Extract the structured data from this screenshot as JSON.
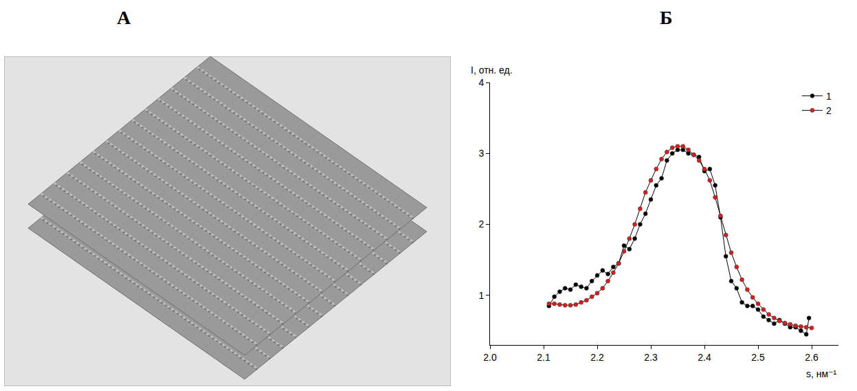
{
  "panel_labels": [
    "А",
    "Б"
  ],
  "chart_data": {
    "type": "line",
    "x_label": "s, нм⁻¹",
    "y_label": "I, отн. ед.",
    "xlim": [
      2.0,
      2.65
    ],
    "xticks": [
      {
        "value": 2.0,
        "label": "2.0"
      },
      2.1,
      2.2,
      2.3,
      2.4,
      2.5,
      2.6
    ],
    "ylim": [
      0.3,
      4.0
    ],
    "yticks": [
      1,
      2,
      3,
      4
    ],
    "grid": false,
    "legend": "upper right",
    "series": [
      {
        "name": "1",
        "color": "#000000",
        "marker": "circle",
        "line_style": "solid",
        "x": [
          2.11,
          2.12,
          2.13,
          2.14,
          2.15,
          2.16,
          2.17,
          2.18,
          2.19,
          2.2,
          2.21,
          2.22,
          2.23,
          2.24,
          2.25,
          2.26,
          2.27,
          2.28,
          2.29,
          2.3,
          2.31,
          2.32,
          2.33,
          2.34,
          2.35,
          2.36,
          2.37,
          2.38,
          2.39,
          2.4,
          2.41,
          2.42,
          2.43,
          2.44,
          2.45,
          2.46,
          2.47,
          2.48,
          2.49,
          2.5,
          2.51,
          2.52,
          2.53,
          2.54,
          2.55,
          2.56,
          2.57,
          2.58,
          2.59,
          2.595
        ],
        "values": [
          0.85,
          0.98,
          1.05,
          1.1,
          1.08,
          1.15,
          1.12,
          1.1,
          1.2,
          1.28,
          1.35,
          1.3,
          1.4,
          1.45,
          1.7,
          1.65,
          1.8,
          2.0,
          2.15,
          2.35,
          2.55,
          2.65,
          2.9,
          3.0,
          3.05,
          3.05,
          3.0,
          2.98,
          2.95,
          2.75,
          2.78,
          2.55,
          2.1,
          1.55,
          1.2,
          1.1,
          0.9,
          0.85,
          0.85,
          0.8,
          0.7,
          0.65,
          0.6,
          0.65,
          0.6,
          0.55,
          0.55,
          0.5,
          0.45,
          0.68
        ]
      },
      {
        "name": "2",
        "color": "#d62020",
        "marker": "circle",
        "line_style": "solid",
        "x": [
          2.11,
          2.12,
          2.13,
          2.14,
          2.15,
          2.16,
          2.17,
          2.18,
          2.19,
          2.2,
          2.21,
          2.22,
          2.23,
          2.24,
          2.25,
          2.26,
          2.27,
          2.28,
          2.29,
          2.3,
          2.31,
          2.32,
          2.33,
          2.34,
          2.35,
          2.36,
          2.37,
          2.38,
          2.39,
          2.4,
          2.41,
          2.42,
          2.43,
          2.44,
          2.45,
          2.46,
          2.47,
          2.48,
          2.49,
          2.5,
          2.51,
          2.52,
          2.53,
          2.54,
          2.55,
          2.56,
          2.57,
          2.58,
          2.59,
          2.6
        ],
        "values": [
          0.88,
          0.88,
          0.87,
          0.86,
          0.86,
          0.87,
          0.9,
          0.93,
          0.98,
          1.03,
          1.1,
          1.2,
          1.32,
          1.45,
          1.62,
          1.8,
          2.0,
          2.22,
          2.45,
          2.62,
          2.78,
          2.92,
          3.02,
          3.08,
          3.1,
          3.1,
          3.05,
          2.98,
          2.9,
          2.78,
          2.62,
          2.38,
          2.12,
          1.85,
          1.6,
          1.4,
          1.22,
          1.08,
          0.97,
          0.88,
          0.8,
          0.73,
          0.68,
          0.64,
          0.61,
          0.59,
          0.57,
          0.56,
          0.55,
          0.54
        ]
      }
    ]
  }
}
